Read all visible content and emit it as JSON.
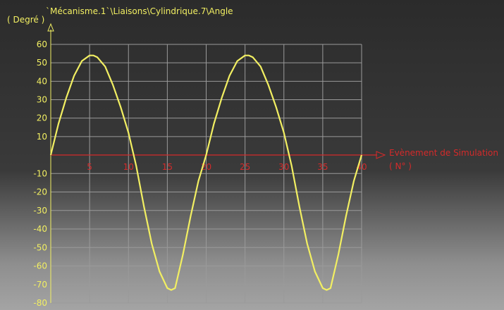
{
  "chart_data": {
    "type": "line",
    "title": "`Mécanisme.1`\\Liaisons\\Cylindrique.7\\Angle",
    "ylabel": "( Degré )",
    "xlabel": "Evènement de Simulation",
    "xlabel_unit": "( N° )",
    "xlim": [
      0,
      40
    ],
    "ylim": [
      -80,
      60
    ],
    "xticks": [
      5,
      10,
      15,
      20,
      25,
      30,
      35,
      40
    ],
    "yticks": [
      60,
      50,
      40,
      30,
      20,
      10,
      -10,
      -20,
      -30,
      -40,
      -50,
      -60,
      -70,
      -80
    ],
    "grid": true,
    "colors": {
      "series": "#f2ef62",
      "x_axis": "#d42a2a",
      "y_axis": "#f2ef62",
      "grid": "#9a9a9a"
    },
    "series": [
      {
        "x": [
          0,
          1,
          2,
          3,
          4,
          5,
          5.5,
          6,
          7,
          8,
          9,
          10,
          11,
          12,
          13,
          14,
          15,
          15.5,
          16,
          17,
          18,
          19,
          20,
          21,
          22,
          23,
          24,
          25,
          25.5,
          26,
          27,
          28,
          29,
          30,
          31,
          32,
          33,
          34,
          35,
          35.5,
          36,
          37,
          38,
          39,
          40
        ],
        "y": [
          0,
          17,
          31,
          43,
          51,
          54,
          54,
          53,
          48,
          38,
          26,
          12,
          -6,
          -28,
          -48,
          -63,
          -72,
          -73,
          -72,
          -54,
          -33,
          -14,
          0,
          17,
          31,
          43,
          51,
          54,
          54,
          53,
          48,
          38,
          26,
          12,
          -6,
          -28,
          -48,
          -63,
          -72,
          -73,
          -72,
          -54,
          -33,
          -14,
          0
        ]
      }
    ]
  }
}
